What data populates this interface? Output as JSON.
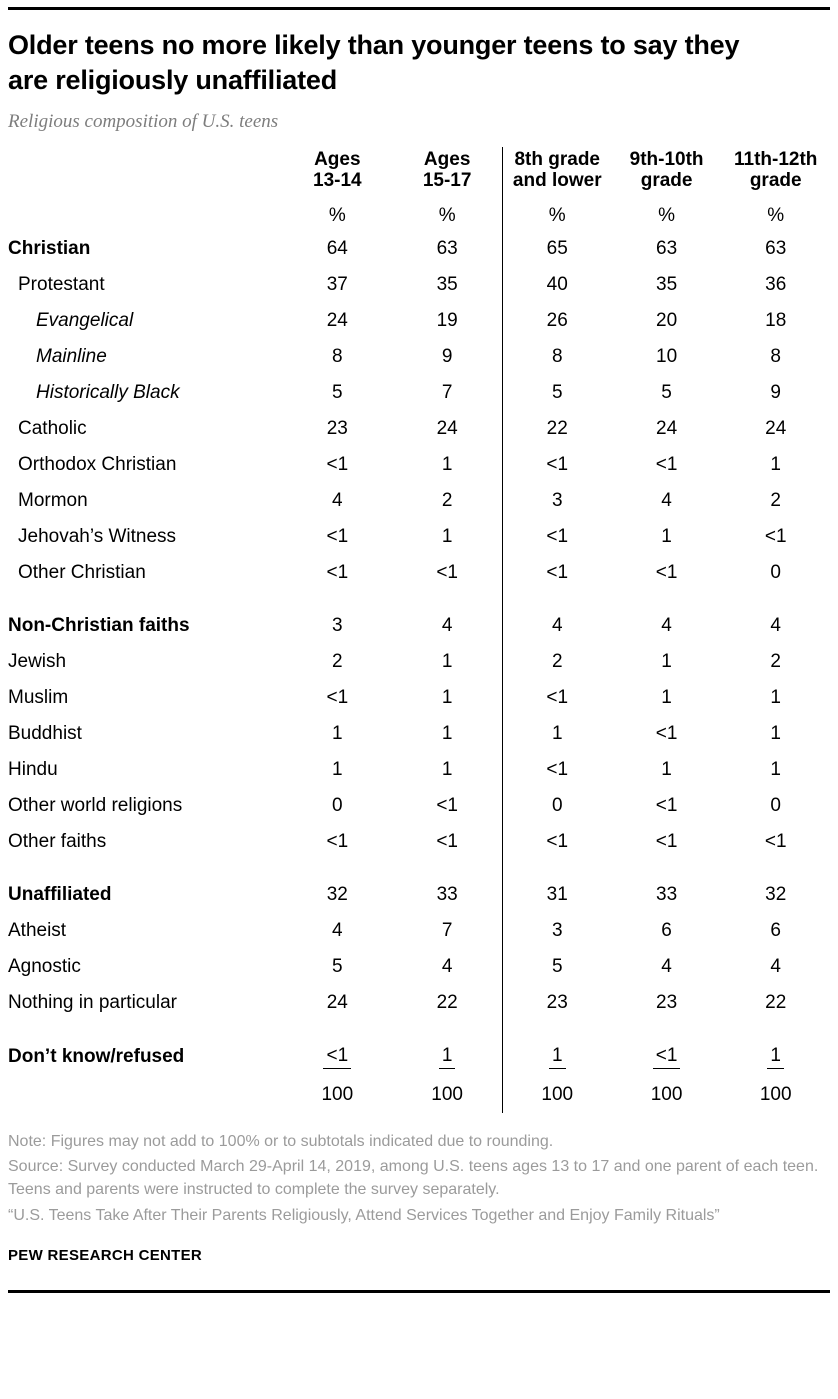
{
  "colors": {
    "text": "#000000",
    "subtitle_gray": "#7d7d7d",
    "note_gray": "#9b9b9b",
    "divider_line": "#000000"
  },
  "header": {
    "title": "Older teens no more likely than younger teens to say they are religiously unaffiliated",
    "subtitle": "Religious composition of U.S. teens"
  },
  "chart_data": {
    "type": "table",
    "title": "Older teens no more likely than younger teens to say they are religiously unaffiliated",
    "subtitle": "Religious composition of U.S. teens",
    "columns": [
      "Ages\n13-14",
      "Ages\n15-17",
      "8th grade\nand lower",
      "9th-10th\ngrade",
      "11th-12th\ngrade"
    ],
    "unit_row": [
      "%",
      "%",
      "%",
      "%",
      "%"
    ],
    "rows": [
      {
        "label": "Christian",
        "indent": 0,
        "bold": true,
        "values": [
          "64",
          "63",
          "65",
          "63",
          "63"
        ]
      },
      {
        "label": "Protestant",
        "indent": 1,
        "values": [
          "37",
          "35",
          "40",
          "35",
          "36"
        ]
      },
      {
        "label": "Evangelical",
        "indent": 2,
        "italic": true,
        "values": [
          "24",
          "19",
          "26",
          "20",
          "18"
        ]
      },
      {
        "label": "Mainline",
        "indent": 2,
        "italic": true,
        "values": [
          "8",
          "9",
          "8",
          "10",
          "8"
        ]
      },
      {
        "label": "Historically Black",
        "indent": 2,
        "italic": true,
        "values": [
          "5",
          "7",
          "5",
          "5",
          "9"
        ]
      },
      {
        "label": "Catholic",
        "indent": 1,
        "values": [
          "23",
          "24",
          "22",
          "24",
          "24"
        ]
      },
      {
        "label": "Orthodox Christian",
        "indent": 1,
        "values": [
          "<1",
          "1",
          "<1",
          "<1",
          "1"
        ]
      },
      {
        "label": "Mormon",
        "indent": 1,
        "values": [
          "4",
          "2",
          "3",
          "4",
          "2"
        ]
      },
      {
        "label": "Jehovah’s Witness",
        "indent": 1,
        "values": [
          "<1",
          "1",
          "<1",
          "1",
          "<1"
        ]
      },
      {
        "label": "Other Christian",
        "indent": 1,
        "values": [
          "<1",
          "<1",
          "<1",
          "<1",
          "0"
        ]
      },
      {
        "label": "Non-Christian faiths",
        "indent": 0,
        "bold": true,
        "gap": true,
        "values": [
          "3",
          "4",
          "4",
          "4",
          "4"
        ]
      },
      {
        "label": "Jewish",
        "indent": 0,
        "values": [
          "2",
          "1",
          "2",
          "1",
          "2"
        ]
      },
      {
        "label": "Muslim",
        "indent": 0,
        "values": [
          "<1",
          "1",
          "<1",
          "1",
          "1"
        ]
      },
      {
        "label": "Buddhist",
        "indent": 0,
        "values": [
          "1",
          "1",
          "1",
          "<1",
          "1"
        ]
      },
      {
        "label": "Hindu",
        "indent": 0,
        "values": [
          "1",
          "1",
          "<1",
          "1",
          "1"
        ]
      },
      {
        "label": "Other world religions",
        "indent": 0,
        "values": [
          "0",
          "<1",
          "0",
          "<1",
          "0"
        ]
      },
      {
        "label": "Other faiths",
        "indent": 0,
        "values": [
          "<1",
          "<1",
          "<1",
          "<1",
          "<1"
        ]
      },
      {
        "label": "Unaffiliated",
        "indent": 0,
        "bold": true,
        "gap": true,
        "values": [
          "32",
          "33",
          "31",
          "33",
          "32"
        ]
      },
      {
        "label": "Atheist",
        "indent": 0,
        "values": [
          "4",
          "7",
          "3",
          "6",
          "6"
        ]
      },
      {
        "label": "Agnostic",
        "indent": 0,
        "values": [
          "5",
          "4",
          "5",
          "4",
          "4"
        ]
      },
      {
        "label": "Nothing in particular",
        "indent": 0,
        "values": [
          "24",
          "22",
          "23",
          "23",
          "22"
        ]
      },
      {
        "label": "Don’t know/refused",
        "indent": 0,
        "bold": true,
        "gap": true,
        "underline": true,
        "values": [
          "<1",
          "1",
          "1",
          "<1",
          "1"
        ]
      }
    ],
    "total_row": [
      "100",
      "100",
      "100",
      "100",
      "100"
    ],
    "layout": {
      "divider_after_column": "Ages 15-17",
      "grid": "off",
      "value_alignment": "center"
    }
  },
  "footer": {
    "note": "Note: Figures may not add to 100% or to subtotals indicated due to rounding.",
    "source": "Source: Survey conducted March 29-April 14, 2019, among U.S. teens ages 13 to 17 and one parent of each teen. Teens and parents were instructed to complete the survey separately.",
    "report": "“U.S. Teens Take After Their Parents Religiously, Attend Services Together and Enjoy Family Rituals”",
    "brand": "PEW RESEARCH CENTER"
  }
}
